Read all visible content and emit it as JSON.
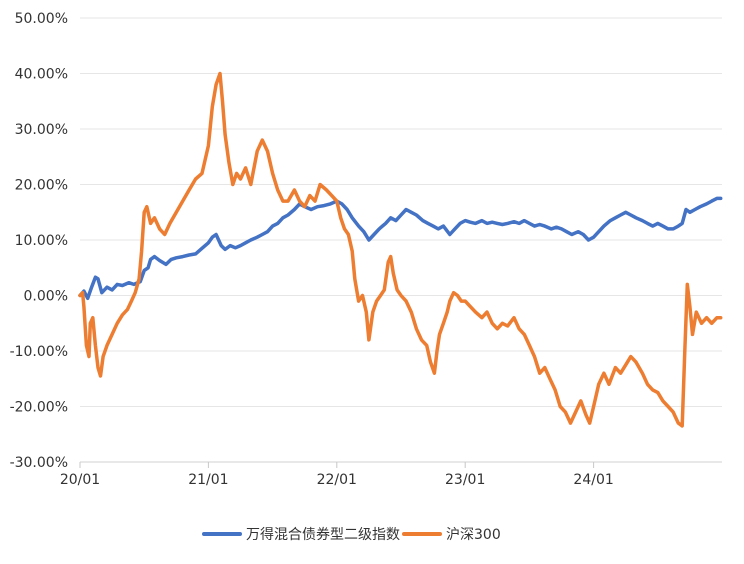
{
  "chart_data": {
    "type": "line",
    "title": "",
    "xlabel": "",
    "ylabel": "",
    "x_ticks": [
      "20/01",
      "21/01",
      "22/01",
      "23/01",
      "24/01"
    ],
    "y_ticks": [
      "50.00%",
      "40.00%",
      "30.00%",
      "20.00%",
      "10.00%",
      "0.00%",
      "-10.00%",
      "-20.00%",
      "-30.00%"
    ],
    "ylim": [
      -30,
      50
    ],
    "xlim": [
      2020.0,
      2025.0
    ],
    "grid": true,
    "legend_position": "bottom-center",
    "series": [
      {
        "name": "万得混合债券型二级指数",
        "color": "#4472C4",
        "points": [
          [
            2020.0,
            0.0
          ],
          [
            2020.03,
            0.8
          ],
          [
            2020.06,
            -0.5
          ],
          [
            2020.09,
            1.5
          ],
          [
            2020.12,
            3.3
          ],
          [
            2020.14,
            3.0
          ],
          [
            2020.17,
            0.5
          ],
          [
            2020.21,
            1.5
          ],
          [
            2020.25,
            1.0
          ],
          [
            2020.29,
            2.0
          ],
          [
            2020.33,
            1.8
          ],
          [
            2020.38,
            2.3
          ],
          [
            2020.42,
            2.0
          ],
          [
            2020.47,
            2.5
          ],
          [
            2020.5,
            4.5
          ],
          [
            2020.53,
            5.0
          ],
          [
            2020.55,
            6.5
          ],
          [
            2020.58,
            7.0
          ],
          [
            2020.62,
            6.3
          ],
          [
            2020.67,
            5.6
          ],
          [
            2020.71,
            6.5
          ],
          [
            2020.75,
            6.8
          ],
          [
            2020.8,
            7.0
          ],
          [
            2020.85,
            7.3
          ],
          [
            2020.9,
            7.5
          ],
          [
            2020.95,
            8.5
          ],
          [
            2021.0,
            9.5
          ],
          [
            2021.03,
            10.5
          ],
          [
            2021.06,
            11.0
          ],
          [
            2021.1,
            9.0
          ],
          [
            2021.13,
            8.3
          ],
          [
            2021.17,
            9.0
          ],
          [
            2021.21,
            8.6
          ],
          [
            2021.25,
            9.0
          ],
          [
            2021.29,
            9.5
          ],
          [
            2021.33,
            10.0
          ],
          [
            2021.38,
            10.5
          ],
          [
            2021.42,
            11.0
          ],
          [
            2021.46,
            11.5
          ],
          [
            2021.5,
            12.5
          ],
          [
            2021.54,
            13.0
          ],
          [
            2021.58,
            14.0
          ],
          [
            2021.62,
            14.5
          ],
          [
            2021.67,
            15.5
          ],
          [
            2021.71,
            16.5
          ],
          [
            2021.75,
            16.0
          ],
          [
            2021.8,
            15.5
          ],
          [
            2021.85,
            16.0
          ],
          [
            2021.9,
            16.2
          ],
          [
            2021.95,
            16.5
          ],
          [
            2022.0,
            17.0
          ],
          [
            2022.04,
            16.5
          ],
          [
            2022.08,
            15.5
          ],
          [
            2022.12,
            14.0
          ],
          [
            2022.17,
            12.5
          ],
          [
            2022.21,
            11.5
          ],
          [
            2022.25,
            10.0
          ],
          [
            2022.29,
            11.0
          ],
          [
            2022.33,
            12.0
          ],
          [
            2022.38,
            13.0
          ],
          [
            2022.42,
            14.0
          ],
          [
            2022.46,
            13.5
          ],
          [
            2022.5,
            14.5
          ],
          [
            2022.54,
            15.5
          ],
          [
            2022.58,
            15.0
          ],
          [
            2022.62,
            14.5
          ],
          [
            2022.67,
            13.5
          ],
          [
            2022.71,
            13.0
          ],
          [
            2022.75,
            12.5
          ],
          [
            2022.79,
            12.0
          ],
          [
            2022.83,
            12.5
          ],
          [
            2022.88,
            11.0
          ],
          [
            2022.92,
            12.0
          ],
          [
            2022.96,
            13.0
          ],
          [
            2023.0,
            13.5
          ],
          [
            2023.04,
            13.2
          ],
          [
            2023.08,
            13.0
          ],
          [
            2023.13,
            13.5
          ],
          [
            2023.17,
            13.0
          ],
          [
            2023.21,
            13.2
          ],
          [
            2023.25,
            13.0
          ],
          [
            2023.29,
            12.8
          ],
          [
            2023.33,
            13.0
          ],
          [
            2023.38,
            13.3
          ],
          [
            2023.42,
            13.0
          ],
          [
            2023.46,
            13.5
          ],
          [
            2023.5,
            13.0
          ],
          [
            2023.54,
            12.5
          ],
          [
            2023.58,
            12.8
          ],
          [
            2023.62,
            12.5
          ],
          [
            2023.67,
            12.0
          ],
          [
            2023.71,
            12.3
          ],
          [
            2023.75,
            12.0
          ],
          [
            2023.79,
            11.5
          ],
          [
            2023.83,
            11.0
          ],
          [
            2023.88,
            11.5
          ],
          [
            2023.92,
            11.0
          ],
          [
            2023.96,
            10.0
          ],
          [
            2024.0,
            10.5
          ],
          [
            2024.04,
            11.5
          ],
          [
            2024.08,
            12.5
          ],
          [
            2024.13,
            13.5
          ],
          [
            2024.17,
            14.0
          ],
          [
            2024.21,
            14.5
          ],
          [
            2024.25,
            15.0
          ],
          [
            2024.29,
            14.5
          ],
          [
            2024.33,
            14.0
          ],
          [
            2024.38,
            13.5
          ],
          [
            2024.42,
            13.0
          ],
          [
            2024.46,
            12.5
          ],
          [
            2024.5,
            13.0
          ],
          [
            2024.54,
            12.5
          ],
          [
            2024.58,
            12.0
          ],
          [
            2024.62,
            12.0
          ],
          [
            2024.66,
            12.5
          ],
          [
            2024.69,
            13.0
          ],
          [
            2024.72,
            15.5
          ],
          [
            2024.75,
            15.0
          ],
          [
            2024.79,
            15.5
          ],
          [
            2024.83,
            16.0
          ],
          [
            2024.88,
            16.5
          ],
          [
            2024.92,
            17.0
          ],
          [
            2024.96,
            17.5
          ],
          [
            2024.99,
            17.5
          ]
        ]
      },
      {
        "name": "沪深300",
        "color": "#ED7D31",
        "points": [
          [
            2020.0,
            0.0
          ],
          [
            2020.02,
            0.5
          ],
          [
            2020.03,
            -2.0
          ],
          [
            2020.05,
            -9.0
          ],
          [
            2020.07,
            -11.0
          ],
          [
            2020.08,
            -5.0
          ],
          [
            2020.1,
            -4.0
          ],
          [
            2020.12,
            -9.0
          ],
          [
            2020.14,
            -13.0
          ],
          [
            2020.16,
            -14.5
          ],
          [
            2020.18,
            -11.0
          ],
          [
            2020.21,
            -9.0
          ],
          [
            2020.25,
            -7.0
          ],
          [
            2020.29,
            -5.0
          ],
          [
            2020.33,
            -3.5
          ],
          [
            2020.37,
            -2.5
          ],
          [
            2020.4,
            -1.0
          ],
          [
            2020.43,
            0.5
          ],
          [
            2020.46,
            3.0
          ],
          [
            2020.48,
            8.0
          ],
          [
            2020.5,
            15.0
          ],
          [
            2020.52,
            16.0
          ],
          [
            2020.55,
            13.0
          ],
          [
            2020.58,
            14.0
          ],
          [
            2020.62,
            12.0
          ],
          [
            2020.66,
            11.0
          ],
          [
            2020.7,
            13.0
          ],
          [
            2020.75,
            15.0
          ],
          [
            2020.8,
            17.0
          ],
          [
            2020.85,
            19.0
          ],
          [
            2020.9,
            21.0
          ],
          [
            2020.95,
            22.0
          ],
          [
            2021.0,
            27.0
          ],
          [
            2021.03,
            34.0
          ],
          [
            2021.06,
            38.0
          ],
          [
            2021.09,
            40.0
          ],
          [
            2021.11,
            35.0
          ],
          [
            2021.13,
            29.0
          ],
          [
            2021.16,
            24.0
          ],
          [
            2021.19,
            20.0
          ],
          [
            2021.22,
            22.0
          ],
          [
            2021.25,
            21.0
          ],
          [
            2021.29,
            23.0
          ],
          [
            2021.33,
            20.0
          ],
          [
            2021.38,
            26.0
          ],
          [
            2021.42,
            28.0
          ],
          [
            2021.46,
            26.0
          ],
          [
            2021.5,
            22.0
          ],
          [
            2021.54,
            19.0
          ],
          [
            2021.58,
            17.0
          ],
          [
            2021.62,
            17.0
          ],
          [
            2021.67,
            19.0
          ],
          [
            2021.71,
            17.0
          ],
          [
            2021.75,
            16.0
          ],
          [
            2021.79,
            18.0
          ],
          [
            2021.83,
            17.0
          ],
          [
            2021.87,
            20.0
          ],
          [
            2021.92,
            19.0
          ],
          [
            2021.96,
            18.0
          ],
          [
            2022.0,
            17.0
          ],
          [
            2022.03,
            14.0
          ],
          [
            2022.06,
            12.0
          ],
          [
            2022.09,
            11.0
          ],
          [
            2022.12,
            8.0
          ],
          [
            2022.14,
            3.0
          ],
          [
            2022.17,
            -1.0
          ],
          [
            2022.2,
            0.0
          ],
          [
            2022.23,
            -3.0
          ],
          [
            2022.25,
            -8.0
          ],
          [
            2022.28,
            -3.0
          ],
          [
            2022.31,
            -1.0
          ],
          [
            2022.34,
            0.0
          ],
          [
            2022.37,
            1.0
          ],
          [
            2022.4,
            6.0
          ],
          [
            2022.42,
            7.0
          ],
          [
            2022.44,
            4.0
          ],
          [
            2022.47,
            1.0
          ],
          [
            2022.5,
            0.0
          ],
          [
            2022.54,
            -1.0
          ],
          [
            2022.58,
            -3.0
          ],
          [
            2022.62,
            -6.0
          ],
          [
            2022.66,
            -8.0
          ],
          [
            2022.7,
            -9.0
          ],
          [
            2022.73,
            -12.0
          ],
          [
            2022.76,
            -14.0
          ],
          [
            2022.78,
            -10.0
          ],
          [
            2022.8,
            -7.0
          ],
          [
            2022.83,
            -5.0
          ],
          [
            2022.86,
            -3.0
          ],
          [
            2022.88,
            -1.0
          ],
          [
            2022.91,
            0.5
          ],
          [
            2022.94,
            0.0
          ],
          [
            2022.97,
            -1.0
          ],
          [
            2023.0,
            -1.0
          ],
          [
            2023.04,
            -2.0
          ],
          [
            2023.08,
            -3.0
          ],
          [
            2023.13,
            -4.0
          ],
          [
            2023.17,
            -3.0
          ],
          [
            2023.21,
            -5.0
          ],
          [
            2023.25,
            -6.0
          ],
          [
            2023.29,
            -5.0
          ],
          [
            2023.33,
            -5.5
          ],
          [
            2023.38,
            -4.0
          ],
          [
            2023.42,
            -6.0
          ],
          [
            2023.46,
            -7.0
          ],
          [
            2023.5,
            -9.0
          ],
          [
            2023.54,
            -11.0
          ],
          [
            2023.58,
            -14.0
          ],
          [
            2023.62,
            -13.0
          ],
          [
            2023.66,
            -15.0
          ],
          [
            2023.7,
            -17.0
          ],
          [
            2023.74,
            -20.0
          ],
          [
            2023.78,
            -21.0
          ],
          [
            2023.82,
            -23.0
          ],
          [
            2023.86,
            -21.0
          ],
          [
            2023.9,
            -19.0
          ],
          [
            2023.94,
            -21.5
          ],
          [
            2023.97,
            -23.0
          ],
          [
            2024.0,
            -20.0
          ],
          [
            2024.04,
            -16.0
          ],
          [
            2024.08,
            -14.0
          ],
          [
            2024.12,
            -16.0
          ],
          [
            2024.17,
            -13.0
          ],
          [
            2024.21,
            -14.0
          ],
          [
            2024.25,
            -12.5
          ],
          [
            2024.29,
            -11.0
          ],
          [
            2024.33,
            -12.0
          ],
          [
            2024.38,
            -14.0
          ],
          [
            2024.42,
            -16.0
          ],
          [
            2024.46,
            -17.0
          ],
          [
            2024.5,
            -17.5
          ],
          [
            2024.54,
            -19.0
          ],
          [
            2024.58,
            -20.0
          ],
          [
            2024.62,
            -21.0
          ],
          [
            2024.66,
            -23.0
          ],
          [
            2024.69,
            -23.5
          ],
          [
            2024.71,
            -10.0
          ],
          [
            2024.73,
            2.0
          ],
          [
            2024.75,
            -2.0
          ],
          [
            2024.77,
            -7.0
          ],
          [
            2024.8,
            -3.0
          ],
          [
            2024.84,
            -5.0
          ],
          [
            2024.88,
            -4.0
          ],
          [
            2024.92,
            -5.0
          ],
          [
            2024.96,
            -4.0
          ],
          [
            2024.99,
            -4.0
          ]
        ]
      }
    ]
  }
}
